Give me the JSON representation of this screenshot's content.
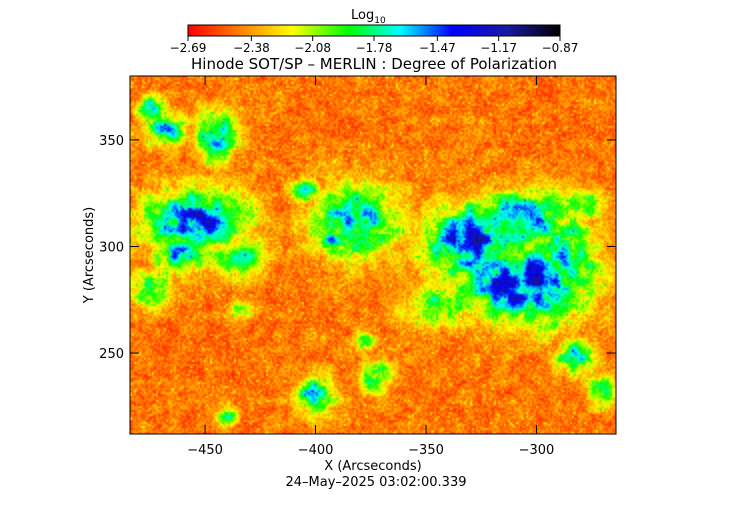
{
  "chart_data": {
    "type": "heatmap",
    "title": "Hinode SOT/SP – MERLIN : Degree of Polarization",
    "xlabel": "X (Arcseconds)",
    "ylabel": "Y (Arcseconds)",
    "footer": "24–May–2025 03:02:00.339",
    "xlim": [
      -484,
      -264
    ],
    "ylim": [
      212,
      380
    ],
    "x_ticks": [
      -450,
      -400,
      -350,
      -300
    ],
    "x_tick_labels": [
      "−450",
      "−400",
      "−350",
      "−300"
    ],
    "y_ticks": [
      250,
      300,
      350
    ],
    "y_tick_labels": [
      "250",
      "300",
      "350"
    ],
    "colorbar": {
      "label": "Log",
      "label_subscript": "10",
      "min": -2.69,
      "max": -0.87,
      "ticks": [
        -2.69,
        -2.38,
        -2.08,
        -1.78,
        -1.47,
        -1.17,
        -0.87
      ],
      "tick_labels": [
        "−2.69",
        "−2.38",
        "−2.08",
        "−1.78",
        "−1.47",
        "−1.17",
        "−0.87"
      ],
      "colormap": [
        "#ff0000",
        "#ff8000",
        "#ffff00",
        "#00ff00",
        "#00ffff",
        "#0000ff",
        "#1a1aa0",
        "#000000"
      ]
    },
    "high_polarization_regions": [
      {
        "x": -455,
        "y": 312,
        "sx": 16,
        "sy": 10,
        "level": 0.95
      },
      {
        "x": -462,
        "y": 296,
        "sx": 8,
        "sy": 6,
        "level": 0.75
      },
      {
        "x": -445,
        "y": 352,
        "sx": 6,
        "sy": 8,
        "level": 0.85
      },
      {
        "x": -468,
        "y": 355,
        "sx": 6,
        "sy": 5,
        "level": 0.75
      },
      {
        "x": -475,
        "y": 365,
        "sx": 4,
        "sy": 4,
        "level": 0.7
      },
      {
        "x": -435,
        "y": 295,
        "sx": 8,
        "sy": 6,
        "level": 0.7
      },
      {
        "x": -475,
        "y": 280,
        "sx": 7,
        "sy": 6,
        "level": 0.6
      },
      {
        "x": -382,
        "y": 312,
        "sx": 14,
        "sy": 12,
        "level": 0.75
      },
      {
        "x": -392,
        "y": 302,
        "sx": 4,
        "sy": 4,
        "level": 0.8
      },
      {
        "x": -405,
        "y": 326,
        "sx": 5,
        "sy": 4,
        "level": 0.65
      },
      {
        "x": -330,
        "y": 302,
        "sx": 14,
        "sy": 12,
        "level": 1.0
      },
      {
        "x": -306,
        "y": 283,
        "sx": 20,
        "sy": 12,
        "level": 1.05
      },
      {
        "x": -306,
        "y": 312,
        "sx": 16,
        "sy": 10,
        "level": 0.8
      },
      {
        "x": -286,
        "y": 296,
        "sx": 10,
        "sy": 12,
        "level": 0.7
      },
      {
        "x": -345,
        "y": 272,
        "sx": 10,
        "sy": 6,
        "level": 0.6
      },
      {
        "x": -278,
        "y": 320,
        "sx": 6,
        "sy": 5,
        "level": 0.55
      },
      {
        "x": -400,
        "y": 230,
        "sx": 6,
        "sy": 6,
        "level": 0.75
      },
      {
        "x": -372,
        "y": 238,
        "sx": 5,
        "sy": 5,
        "level": 0.6
      },
      {
        "x": -378,
        "y": 255,
        "sx": 3,
        "sy": 3,
        "level": 0.6
      },
      {
        "x": -282,
        "y": 248,
        "sx": 6,
        "sy": 5,
        "level": 0.75
      },
      {
        "x": -295,
        "y": 262,
        "sx": 5,
        "sy": 4,
        "level": 0.5
      },
      {
        "x": -270,
        "y": 232,
        "sx": 4,
        "sy": 5,
        "level": 0.55
      },
      {
        "x": -440,
        "y": 220,
        "sx": 3,
        "sy": 3,
        "level": 0.55
      },
      {
        "x": -433,
        "y": 270,
        "sx": 4,
        "sy": 3,
        "level": 0.45
      }
    ]
  }
}
